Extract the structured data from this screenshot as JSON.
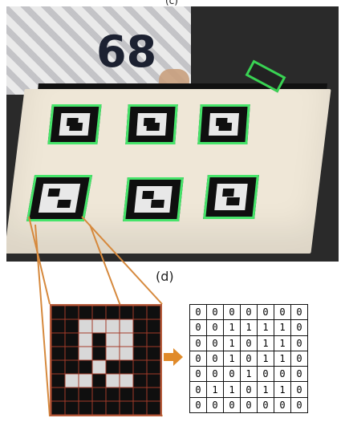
{
  "labels": {
    "top": "(c)",
    "panel_d": "(d)"
  },
  "photo": {
    "shirt_number": "68"
  },
  "grid": {
    "size": 8,
    "cell_colors": {
      "black": "#0f0f0f",
      "white": "#d8d8d8",
      "grid_line": "#a33b2a",
      "border": "#b65c3b"
    }
  },
  "bit_matrix": {
    "rows": [
      [
        "0",
        "0",
        "0",
        "0",
        "0",
        "0",
        "0"
      ],
      [
        "0",
        "0",
        "1",
        "1",
        "1",
        "1",
        "0"
      ],
      [
        "0",
        "0",
        "1",
        "0",
        "1",
        "1",
        "0"
      ],
      [
        "0",
        "0",
        "1",
        "0",
        "1",
        "1",
        "0"
      ],
      [
        "0",
        "0",
        "0",
        "1",
        "0",
        "0",
        "0"
      ],
      [
        "0",
        "1",
        "1",
        "0",
        "1",
        "1",
        "0"
      ],
      [
        "0",
        "0",
        "0",
        "0",
        "0",
        "0",
        "0"
      ]
    ]
  },
  "arrow": {
    "color": "#e08a2a"
  }
}
